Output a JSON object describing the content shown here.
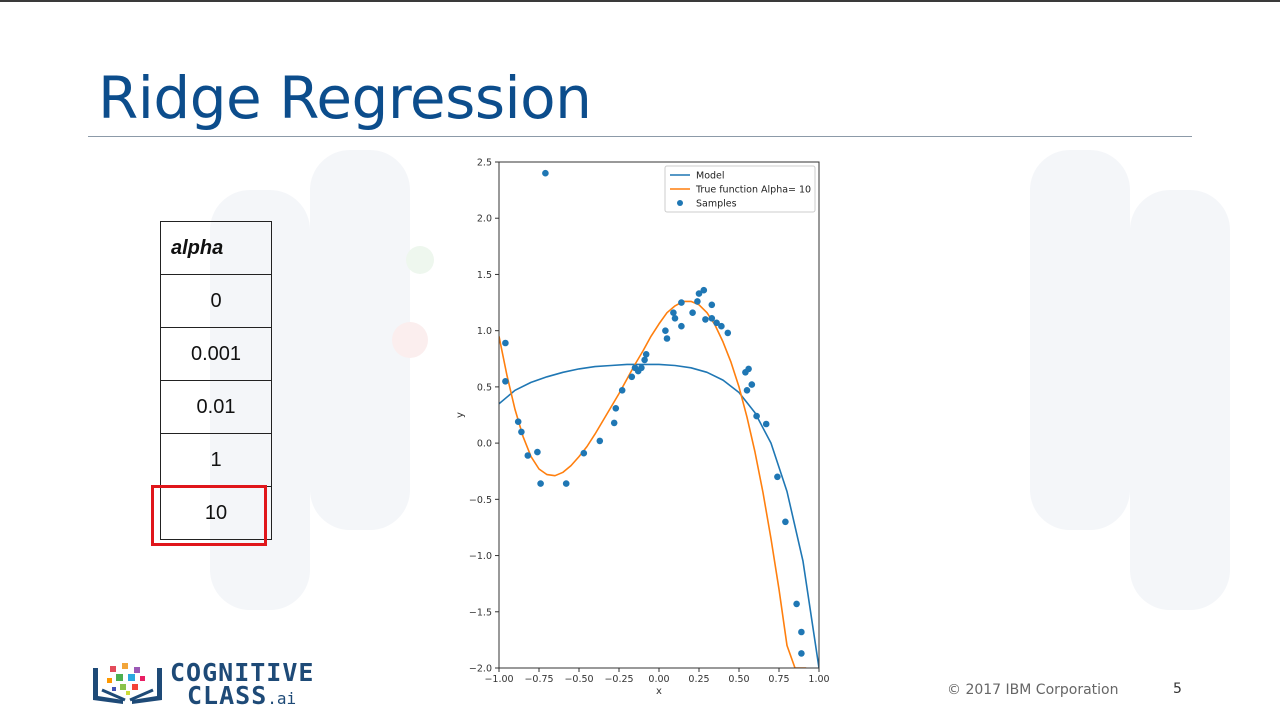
{
  "slide": {
    "title": "Ridge Regression",
    "footer": {
      "copyright": "© 2017 IBM Corporation",
      "page_number": "5"
    },
    "logo": {
      "line1": "COGNITIVE",
      "line2": "CLASS",
      "suffix": ".ai"
    },
    "colors": {
      "title": "#0c4d8c",
      "highlight": "#e0161b",
      "model": "#1f77b4",
      "true_function": "#ff7f0e",
      "samples": "#1f77b4"
    }
  },
  "alpha_table": {
    "header": "alpha",
    "rows": [
      "0",
      "0.001",
      "0.01",
      "1",
      "10"
    ],
    "selected_index": 4
  },
  "chart_data": {
    "type": "line",
    "title": "",
    "xlabel": "x",
    "ylabel": "y",
    "xlim": [
      -1.0,
      1.0
    ],
    "ylim": [
      -2.0,
      2.5
    ],
    "x_ticks": [
      "-1.00",
      "-0.75",
      "-0.50",
      "-0.25",
      "0.00",
      "0.25",
      "0.50",
      "0.75",
      "1.00"
    ],
    "y_ticks": [
      "-2.0",
      "-1.5",
      "-1.0",
      "-0.5",
      "0.0",
      "0.5",
      "1.0",
      "1.5",
      "2.0",
      "2.5"
    ],
    "grid": false,
    "legend_position": "upper right",
    "legend": [
      "Model",
      "True function Alpha= 10",
      "Samples"
    ],
    "series": [
      {
        "name": "Model",
        "kind": "line",
        "color": "#1f77b4",
        "x": [
          -1.0,
          -0.9,
          -0.8,
          -0.7,
          -0.6,
          -0.5,
          -0.4,
          -0.3,
          -0.2,
          -0.1,
          0.0,
          0.1,
          0.2,
          0.3,
          0.4,
          0.5,
          0.6,
          0.7,
          0.8,
          0.9,
          1.0
        ],
        "y": [
          0.35,
          0.47,
          0.54,
          0.59,
          0.63,
          0.66,
          0.68,
          0.69,
          0.7,
          0.7,
          0.7,
          0.69,
          0.67,
          0.63,
          0.56,
          0.45,
          0.27,
          0.0,
          -0.43,
          -1.05,
          -2.0
        ]
      },
      {
        "name": "True function Alpha= 10",
        "kind": "line",
        "color": "#ff7f0e",
        "x": [
          -1.0,
          -0.95,
          -0.9,
          -0.85,
          -0.8,
          -0.75,
          -0.7,
          -0.65,
          -0.6,
          -0.55,
          -0.5,
          -0.45,
          -0.4,
          -0.35,
          -0.3,
          -0.25,
          -0.2,
          -0.15,
          -0.1,
          -0.05,
          0.0,
          0.05,
          0.1,
          0.15,
          0.2,
          0.25,
          0.3,
          0.35,
          0.4,
          0.45,
          0.5,
          0.55,
          0.6,
          0.65,
          0.7,
          0.75,
          0.8,
          0.85,
          0.9,
          0.92
        ],
        "y": [
          0.95,
          0.6,
          0.3,
          0.06,
          -0.12,
          -0.23,
          -0.28,
          -0.29,
          -0.26,
          -0.2,
          -0.12,
          -0.03,
          0.08,
          0.2,
          0.32,
          0.44,
          0.57,
          0.7,
          0.82,
          0.95,
          1.06,
          1.16,
          1.22,
          1.26,
          1.26,
          1.23,
          1.16,
          1.05,
          0.9,
          0.72,
          0.5,
          0.23,
          -0.08,
          -0.44,
          -0.85,
          -1.3,
          -1.8,
          -2.0,
          -2.0,
          -2.0
        ]
      },
      {
        "name": "Samples",
        "kind": "scatter",
        "color": "#1f77b4",
        "points": [
          [
            -0.96,
            0.89
          ],
          [
            -0.96,
            0.55
          ],
          [
            -0.88,
            0.19
          ],
          [
            -0.86,
            0.1
          ],
          [
            -0.82,
            -0.11
          ],
          [
            -0.76,
            -0.08
          ],
          [
            -0.74,
            -0.36
          ],
          [
            -0.71,
            2.4
          ],
          [
            -0.58,
            -0.36
          ],
          [
            -0.47,
            -0.09
          ],
          [
            -0.37,
            0.02
          ],
          [
            -0.28,
            0.18
          ],
          [
            -0.27,
            0.31
          ],
          [
            -0.23,
            0.47
          ],
          [
            -0.17,
            0.59
          ],
          [
            -0.15,
            0.67
          ],
          [
            -0.13,
            0.64
          ],
          [
            -0.11,
            0.67
          ],
          [
            -0.09,
            0.74
          ],
          [
            -0.08,
            0.79
          ],
          [
            0.04,
            1.0
          ],
          [
            0.05,
            0.93
          ],
          [
            0.09,
            1.16
          ],
          [
            0.1,
            1.11
          ],
          [
            0.14,
            1.25
          ],
          [
            0.14,
            1.04
          ],
          [
            0.21,
            1.16
          ],
          [
            0.24,
            1.26
          ],
          [
            0.25,
            1.33
          ],
          [
            0.28,
            1.36
          ],
          [
            0.29,
            1.1
          ],
          [
            0.33,
            1.23
          ],
          [
            0.33,
            1.11
          ],
          [
            0.36,
            1.07
          ],
          [
            0.39,
            1.04
          ],
          [
            0.43,
            0.98
          ],
          [
            0.54,
            0.63
          ],
          [
            0.56,
            0.66
          ],
          [
            0.55,
            0.47
          ],
          [
            0.58,
            0.52
          ],
          [
            0.61,
            0.24
          ],
          [
            0.67,
            0.17
          ],
          [
            0.74,
            -0.3
          ],
          [
            0.79,
            -0.7
          ],
          [
            0.86,
            -1.43
          ],
          [
            0.89,
            -1.68
          ],
          [
            0.89,
            -1.87
          ]
        ]
      }
    ]
  }
}
